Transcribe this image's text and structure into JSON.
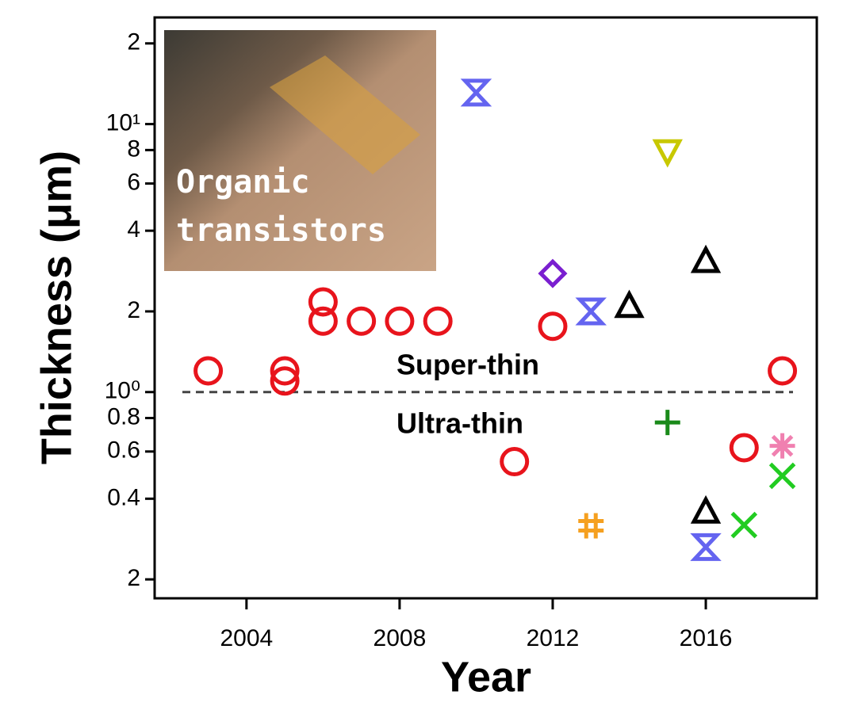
{
  "chart_data": {
    "type": "scatter",
    "xlabel": "Year",
    "ylabel": "Thickness (μm)",
    "yscale": "log",
    "xlim": [
      2001.6,
      2018.9
    ],
    "ylim": [
      0.17,
      25
    ],
    "xticks": [
      2004,
      2008,
      2012,
      2016
    ],
    "yticks": [
      {
        "value": 0.2,
        "label": "2"
      },
      0.4,
      0.6,
      0.8,
      {
        "value": 1,
        "label": "10⁰"
      },
      2,
      4,
      6,
      8,
      {
        "value": 10,
        "label": "10¹"
      },
      {
        "value": 20,
        "label": "2"
      }
    ],
    "reference_line": 1,
    "annotations": [
      "Super-thin",
      "Ultra-thin"
    ],
    "inset_text": [
      "Organic",
      "transistors"
    ],
    "series": [
      {
        "marker": "circle",
        "color": "#e8141c",
        "x": [
          2003,
          2005,
          2005,
          2006,
          2006,
          2007,
          2008,
          2009,
          2011,
          2012,
          2017,
          2018
        ],
        "values": [
          1.2,
          1.2,
          1.1,
          2.17,
          1.84,
          1.84,
          1.84,
          1.84,
          0.55,
          1.76,
          0.62,
          1.2
        ]
      },
      {
        "marker": "hourglass",
        "color": "#6464f0",
        "x": [
          2010,
          2013,
          2016
        ],
        "values": [
          13.1,
          2.0,
          0.264
        ]
      },
      {
        "marker": "diamond",
        "color": "#7a1fd0",
        "x": [
          2012
        ],
        "values": [
          2.77
        ]
      },
      {
        "marker": "triangle-up",
        "color": "#000000",
        "x": [
          2014,
          2016,
          2016
        ],
        "values": [
          2.1,
          3.09,
          0.359
        ]
      },
      {
        "marker": "triangle-down",
        "color": "#c8c800",
        "x": [
          2015
        ],
        "values": [
          7.9
        ]
      },
      {
        "marker": "plus",
        "color": "#1a8a1a",
        "x": [
          2015
        ],
        "values": [
          0.77
        ]
      },
      {
        "marker": "hash",
        "color": "#f5a020",
        "x": [
          2013
        ],
        "values": [
          0.317
        ]
      },
      {
        "marker": "x",
        "color": "#22cc22",
        "x": [
          2017,
          2018
        ],
        "values": [
          0.319,
          0.487
        ]
      },
      {
        "marker": "asterisk",
        "color": "#f080b0",
        "x": [
          2018
        ],
        "values": [
          0.63
        ]
      }
    ]
  }
}
